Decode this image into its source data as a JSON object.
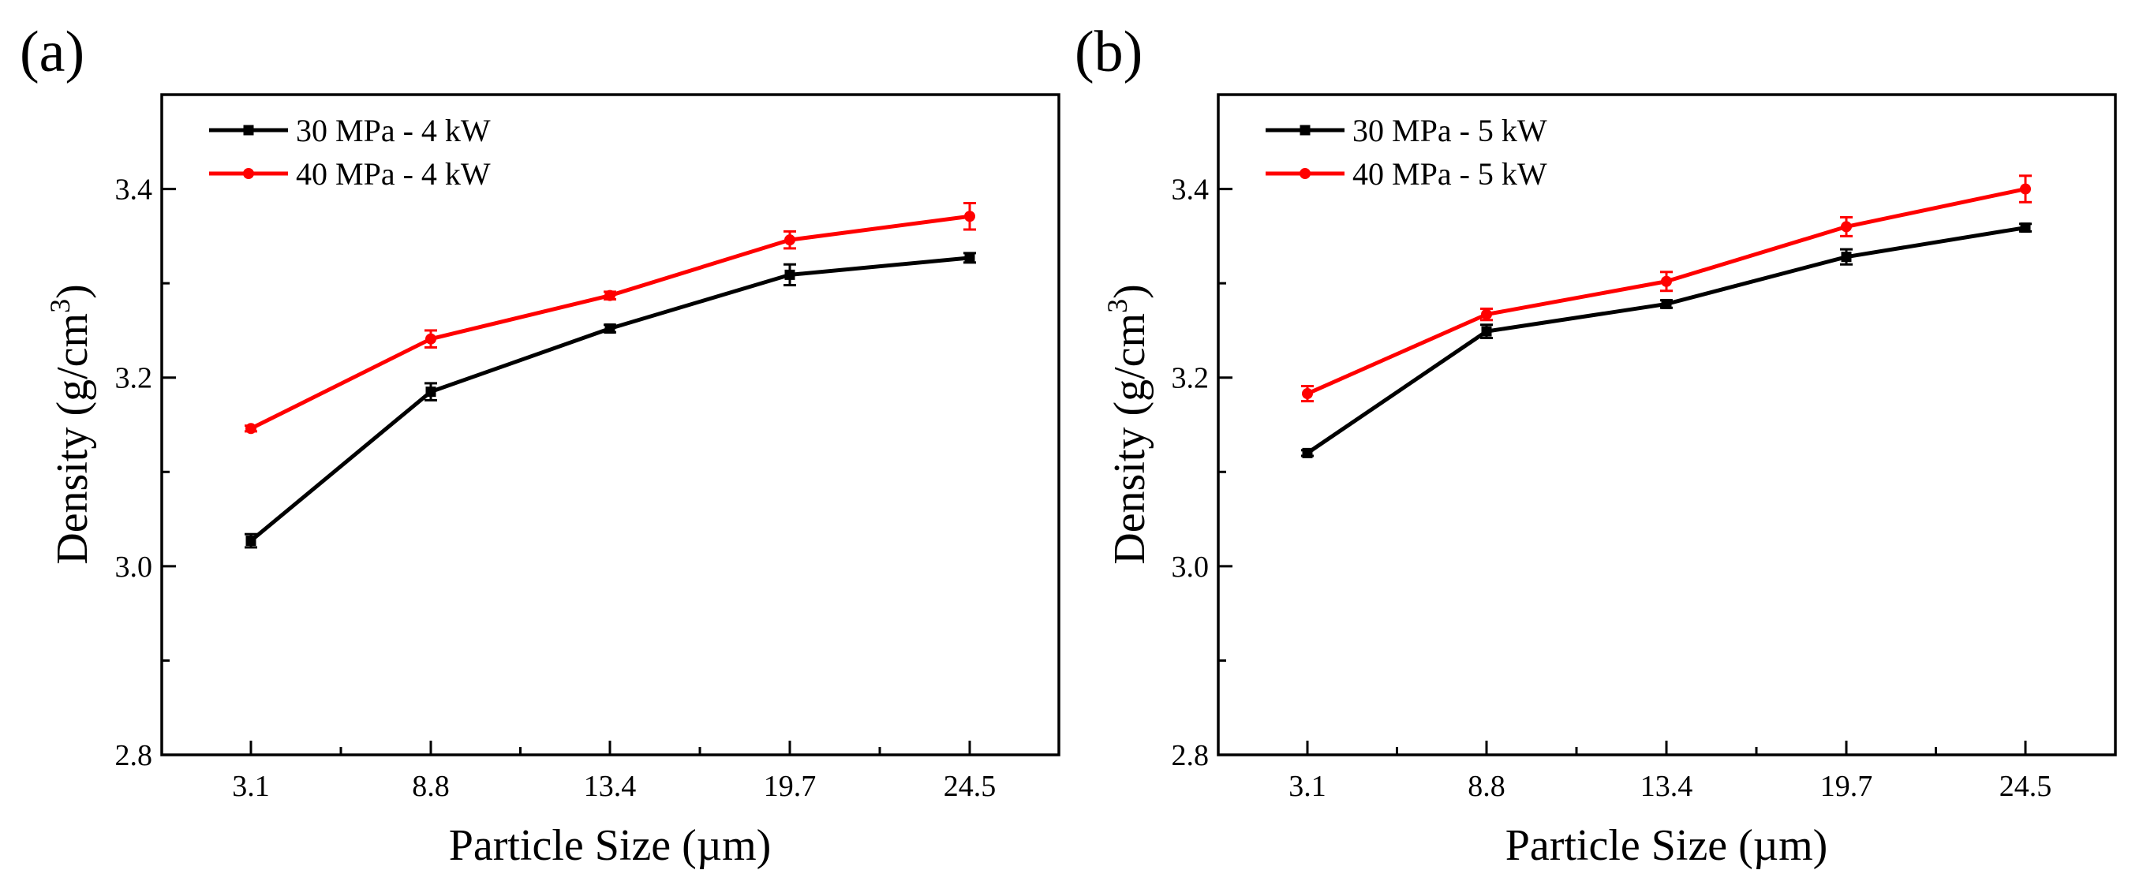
{
  "chart_data": [
    {
      "panel_label": "(a)",
      "type": "line",
      "xlabel": "Particle Size (µm)",
      "ylabel_main": "Density (g/cm",
      "ylabel_sup": "3",
      "ylabel_close": ")",
      "categories": [
        "3.1",
        "8.8",
        "13.4",
        "19.7",
        "24.5"
      ],
      "ylim": [
        2.8,
        3.5
      ],
      "yticks": [
        2.8,
        3.0,
        3.2,
        3.4
      ],
      "ytick_labels": [
        "2.8",
        "3.0",
        "3.2",
        "3.4"
      ],
      "legend_position": "top-left",
      "series": [
        {
          "name": "30 MPa - 4 kW",
          "color": "#000000",
          "marker": "square",
          "values": [
            3.027,
            3.185,
            3.252,
            3.309,
            3.327
          ],
          "errors": [
            0.007,
            0.009,
            0.004,
            0.011,
            0.005
          ]
        },
        {
          "name": "40 MPa - 4 kW",
          "color": "#ff0000",
          "marker": "circle",
          "values": [
            3.146,
            3.241,
            3.287,
            3.346,
            3.371
          ],
          "errors": [
            0.003,
            0.009,
            0.004,
            0.009,
            0.014
          ]
        }
      ]
    },
    {
      "panel_label": "(b)",
      "type": "line",
      "xlabel": "Particle Size (µm)",
      "ylabel_main": "Density (g/cm",
      "ylabel_sup": "3",
      "ylabel_close": ")",
      "categories": [
        "3.1",
        "8.8",
        "13.4",
        "19.7",
        "24.5"
      ],
      "ylim": [
        2.8,
        3.5
      ],
      "yticks": [
        2.8,
        3.0,
        3.2,
        3.4
      ],
      "ytick_labels": [
        "2.8",
        "3.0",
        "3.2",
        "3.4"
      ],
      "legend_position": "top-left",
      "series": [
        {
          "name": "30 MPa - 5 kW",
          "color": "#000000",
          "marker": "square",
          "values": [
            3.12,
            3.249,
            3.278,
            3.328,
            3.359
          ],
          "errors": [
            0.003,
            0.007,
            0.004,
            0.008,
            0.004
          ]
        },
        {
          "name": "40 MPa - 5 kW",
          "color": "#ff0000",
          "marker": "circle",
          "values": [
            3.183,
            3.267,
            3.302,
            3.36,
            3.4
          ],
          "errors": [
            0.008,
            0.006,
            0.01,
            0.01,
            0.014
          ]
        }
      ]
    }
  ]
}
